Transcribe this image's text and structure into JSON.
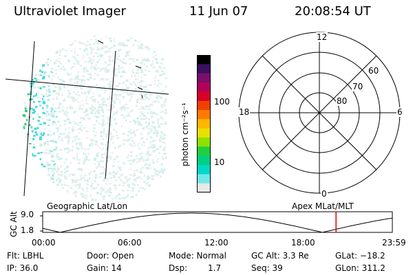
{
  "header": {
    "instrument": "Ultraviolet Imager",
    "date": "11 Jun 07",
    "time": "20:08:54 UT"
  },
  "colorbar": {
    "unit_label": "photon cm⁻²s⁻¹",
    "ticks": [
      "100",
      "10"
    ],
    "scale": "log",
    "colors": [
      "#000000",
      "#3a1060",
      "#7a0f6a",
      "#b0005a",
      "#d7002a",
      "#f04000",
      "#ff7a00",
      "#ffb800",
      "#e8e000",
      "#90e000",
      "#20d040",
      "#00d080",
      "#00d8c8",
      "#70e8e8",
      "#e8e8e8"
    ]
  },
  "polar_plot": {
    "mlt_labels": [
      "12",
      "18",
      "6",
      "0"
    ],
    "lat_labels": [
      "60",
      "70",
      "80"
    ]
  },
  "timeline": {
    "left_label": "Geographic Lat/Lon",
    "right_label": "Apex MLat/MLT",
    "y_axis_label": "GC Alt",
    "y_ticks": [
      "9.0",
      "1.8"
    ],
    "x_ticks": [
      "00:00",
      "06:00",
      "12:00",
      "18:00",
      "23:59"
    ],
    "marker_time_fraction": 0.839,
    "marker_color": "#e00000"
  },
  "status": {
    "flt": "Flt: LBHL",
    "ip": "IP: 36.0",
    "door": "Door: Open",
    "gain": "Gain: 14",
    "mode": "Mode: Normal",
    "dsp_label": "Dsp:",
    "dsp_value": "1.7",
    "gc_alt": "GC Alt: 3.3 Re",
    "seq": "Seq: 39",
    "glat": "GLat: −18.2",
    "glon": "GLon: 311.2"
  }
}
